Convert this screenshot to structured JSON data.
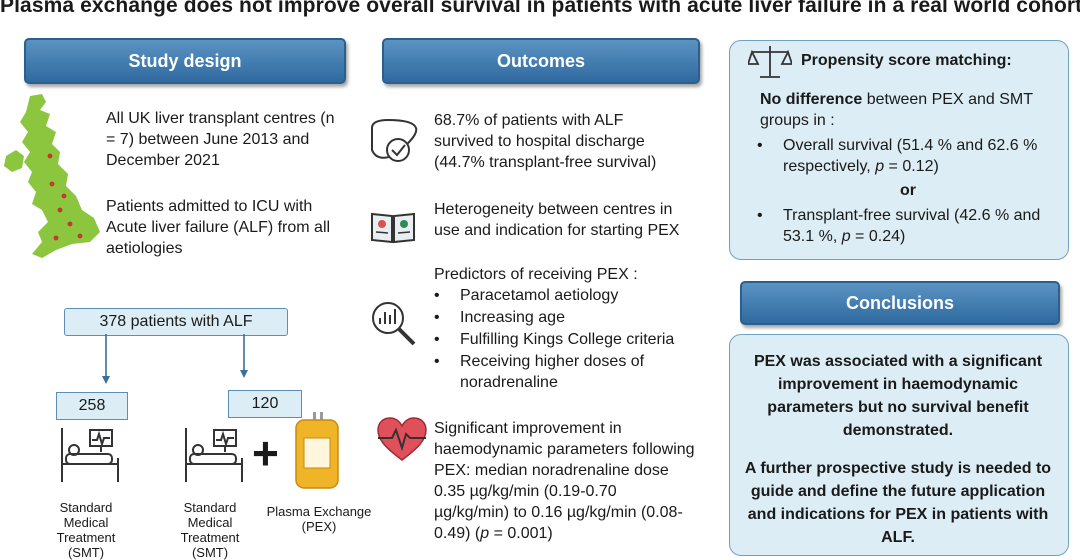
{
  "title": "Plasma exchange does not improve overall survival in patients with acute liver failure in a real world cohort",
  "study_design": {
    "header": "Study design",
    "text1": "All UK liver transplant centres (n = 7) between June 2013 and December 2021",
    "text2": "Patients admitted to ICU with Acute liver failure (ALF) from all aetiologies",
    "total_label": "378 patients with ALF",
    "group1_count": "258",
    "group2_count": "120",
    "group1_caption": "Standard Medical Treatment (SMT)",
    "group2_caption": "Standard Medical Treatment (SMT)",
    "plus": "+",
    "pex_caption": "Plasma Exchange (PEX)"
  },
  "outcomes": {
    "header": "Outcomes",
    "item1": "68.7% of patients with ALF survived to hospital discharge (44.7% transplant-free survival)",
    "item2": "Heterogeneity between centres  in use and indication for starting PEX",
    "item3_title": "Predictors of receiving PEX :",
    "predictors": [
      "Paracetamol aetiology",
      "Increasing age",
      "Fulfilling Kings College criteria",
      "Receiving higher doses of noradrenaline"
    ],
    "item4_a": "Significant improvement in haemodynamic parameters following PEX: median noradrenaline dose 0.35 µg/kg/min (0.19-0.70 µg/kg/min) to 0.16 µg/kg/min (0.08-0.49) (",
    "item4_p": "p",
    "item4_b": " = 0.001)"
  },
  "psm": {
    "title": "Propensity score matching:",
    "lead_bold": "No difference",
    "lead_rest": " between PEX and SMT groups in :",
    "b1_a": "Overall survival (51.4 % and 62.6 % respectively, ",
    "b1_p": "p",
    "b1_b": " = 0.12)",
    "or": "or",
    "b2_a": "Transplant-free survival (42.6 % and 53.1 %, ",
    "b2_p": "p",
    "b2_b": " = 0.24)"
  },
  "conclusions": {
    "header": "Conclusions",
    "p1": "PEX was associated with a significant improvement in haemodynamic parameters but no survival benefit demonstrated.",
    "p2": "A further prospective study is needed to guide and define the future application and indications for PEX in patients with ALF."
  },
  "icons": [
    "uk-map-icon",
    "liver-check-icon",
    "book-icon",
    "magnifier-chart-icon",
    "heart-pulse-icon",
    "icu-bed-icon",
    "plasma-bag-icon",
    "scales-icon"
  ],
  "colors": {
    "header_blue": "#3b77ab",
    "panel_bg": "#dcedf5",
    "map_green": "#8cc63f",
    "heart_red": "#e0505a",
    "plasma_yellow": "#f0b429"
  }
}
